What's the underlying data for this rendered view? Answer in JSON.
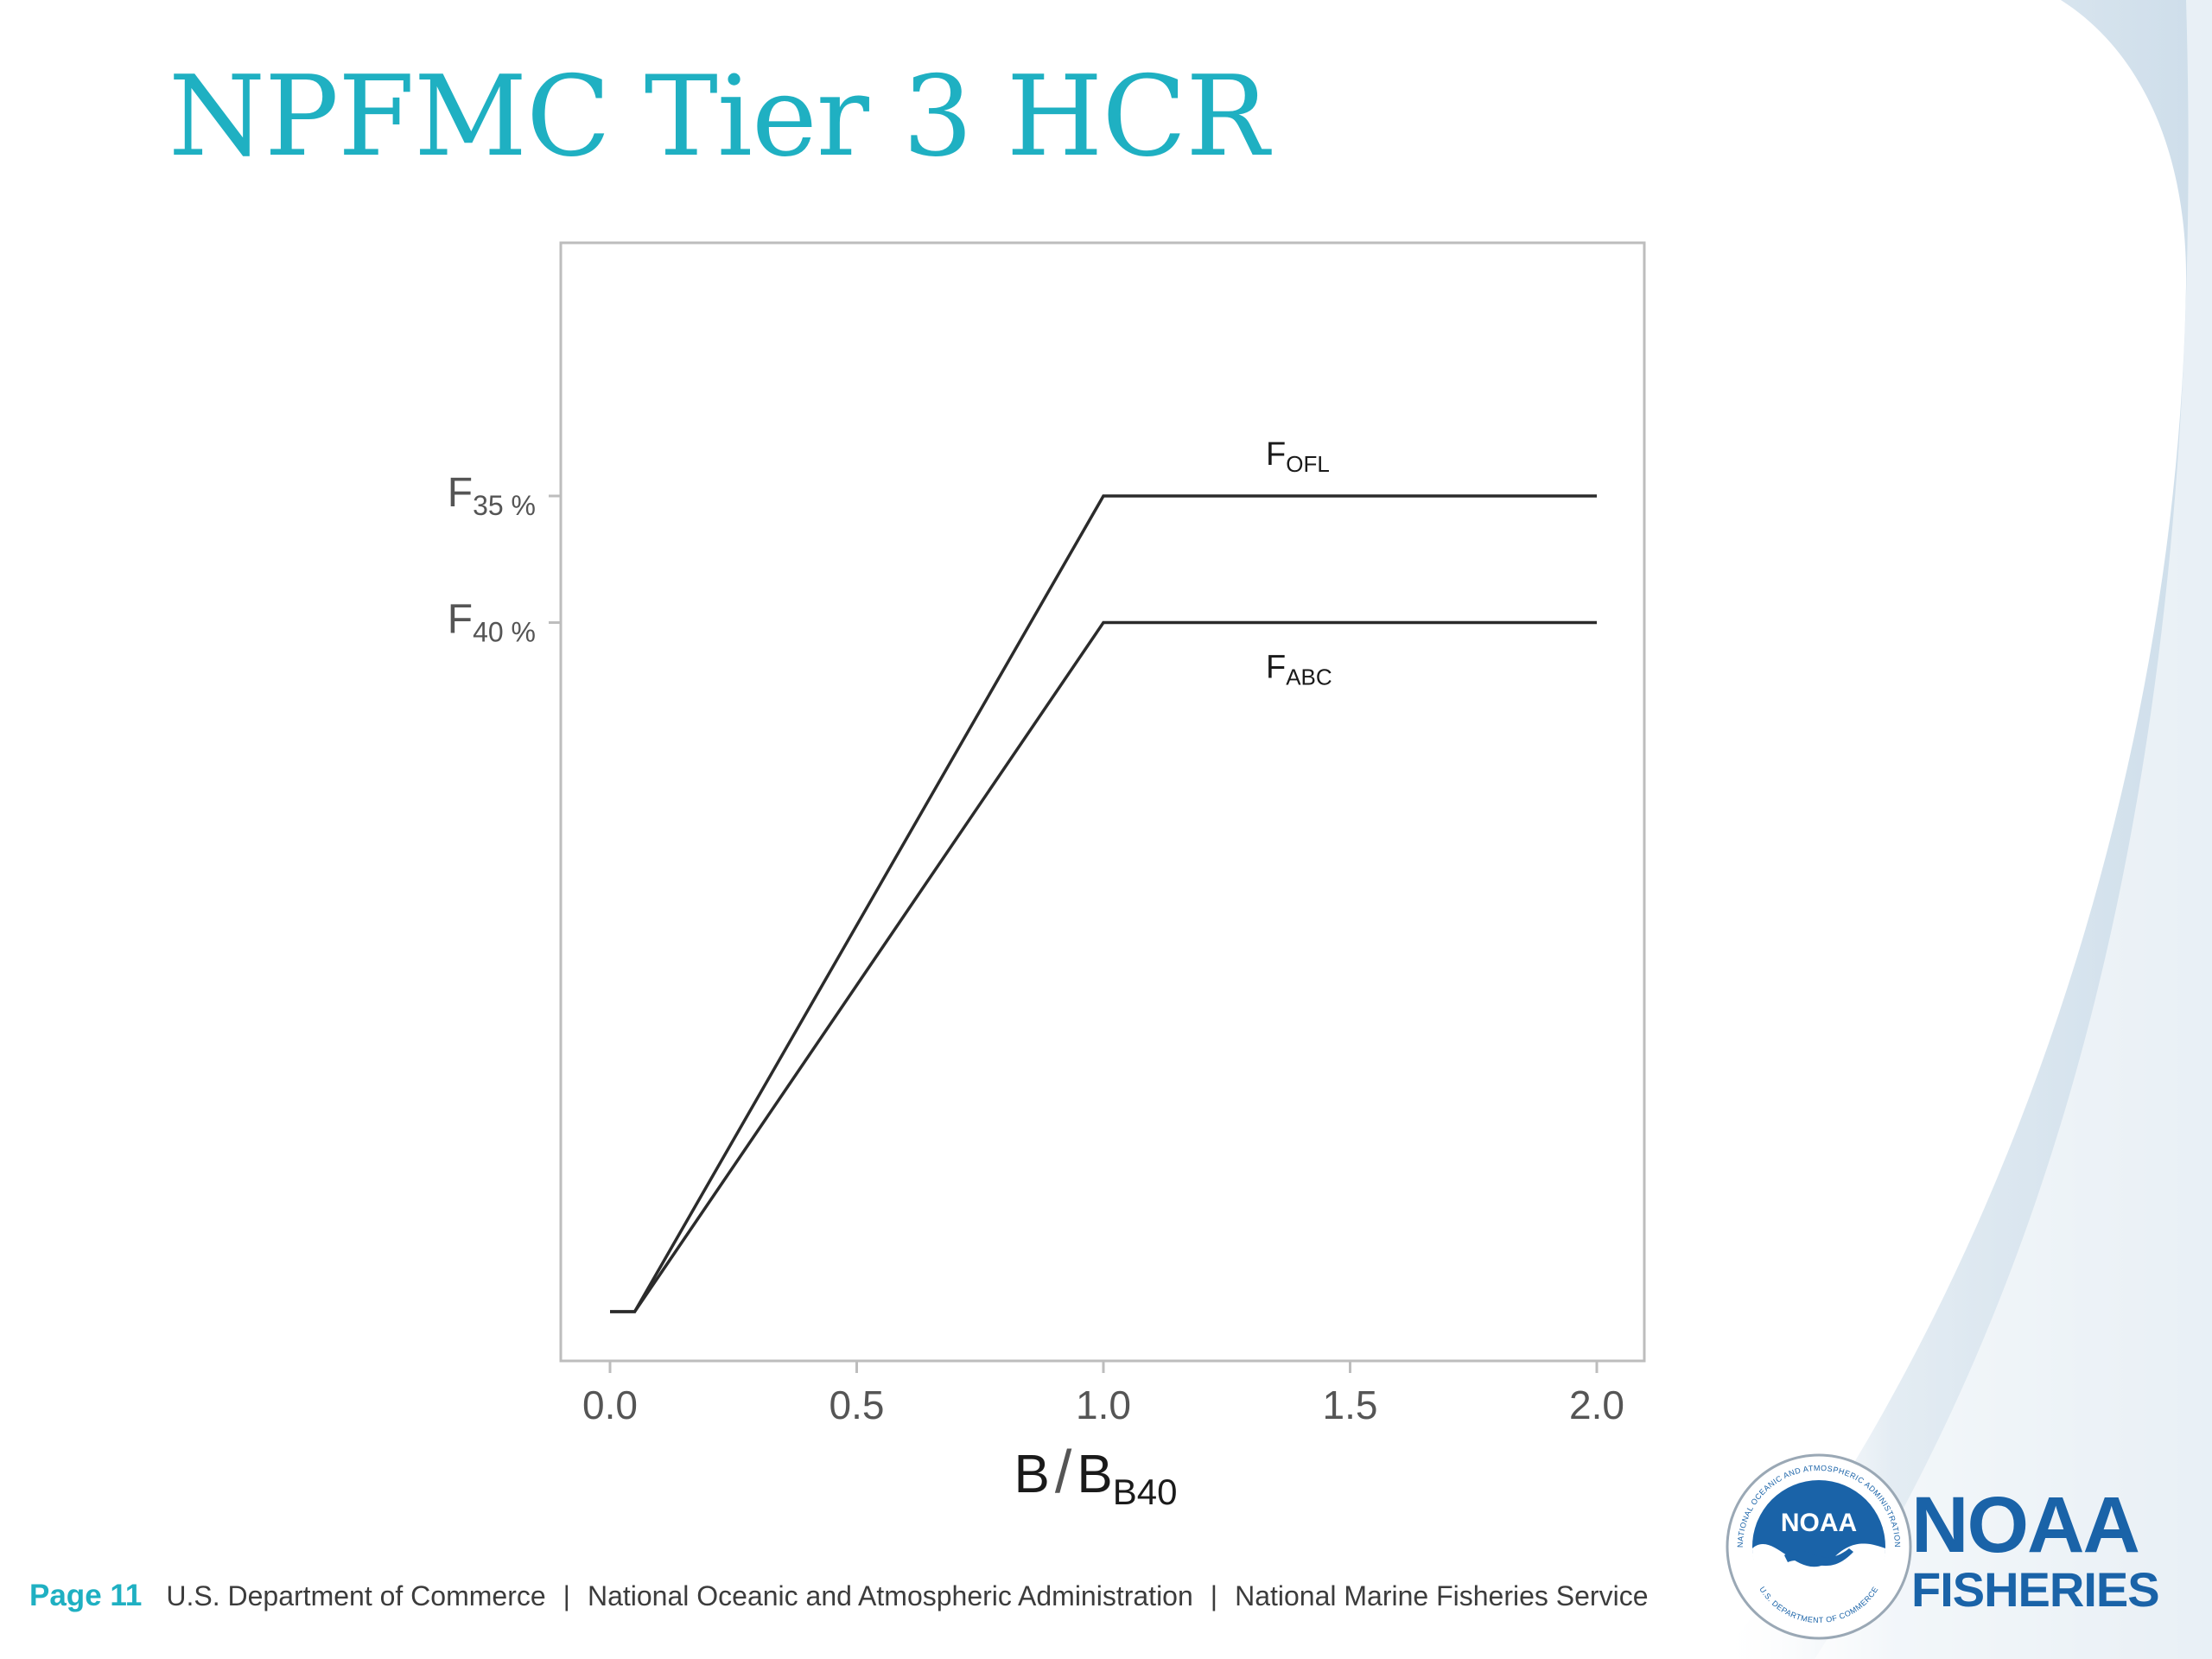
{
  "slide": {
    "title": "NPFMC Tier 3 HCR"
  },
  "chart_data": {
    "type": "line",
    "xlabel": {
      "main": "B",
      "slash": "/",
      "base": "B",
      "sub": "B40"
    },
    "xlim": [
      -0.1,
      2.1
    ],
    "x_ticks": [
      "0.0",
      "0.5",
      "1.0",
      "1.5",
      "2.0"
    ],
    "x_tick_values": [
      0.0,
      0.5,
      1.0,
      1.5,
      2.0
    ],
    "ylim": [
      0,
      1
    ],
    "y_ticks": [
      {
        "main": "F",
        "sub": "35 %",
        "value": 0.67
      },
      {
        "main": "F",
        "sub": "40 %",
        "value": 0.566
      }
    ],
    "grid": false,
    "series": [
      {
        "name": {
          "main": "F",
          "sub": "OFL"
        },
        "x": [
          0.0,
          0.05,
          1.0,
          2.0
        ],
        "y": [
          0.0,
          0.0,
          0.67,
          0.67
        ]
      },
      {
        "name": {
          "main": "F",
          "sub": "ABC"
        },
        "x": [
          0.0,
          0.05,
          1.0,
          2.0
        ],
        "y": [
          0.0,
          0.0,
          0.566,
          0.566
        ]
      }
    ],
    "colors": {
      "line": "#2b2b2b",
      "frame": "#bdbdbd",
      "tick_text": "#555555"
    }
  },
  "footer": {
    "page": "Page 11",
    "parts": [
      "U.S. Department of Commerce",
      "National Oceanic and Atmospheric Administration",
      "National Marine Fisheries Service"
    ],
    "separator": "|"
  },
  "brand": {
    "logo_text": "NOAA",
    "ring_text_top": "NATIONAL OCEANIC AND ATMOSPHERIC ADMINISTRATION",
    "ring_text_bottom": "U.S. DEPARTMENT OF COMMERCE",
    "line1": "NOAA",
    "line2": "FISHERIES"
  },
  "colors": {
    "title": "#1fb0c2",
    "accent": "#1fb0c2",
    "brand_blue": "#1a63a8"
  }
}
